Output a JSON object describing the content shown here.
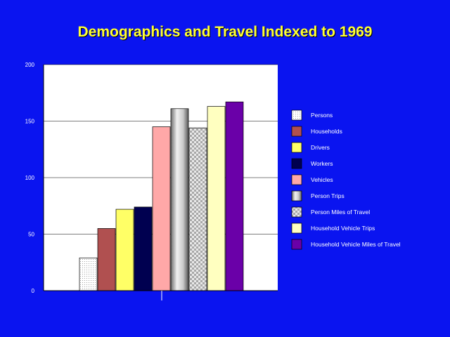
{
  "slide": {
    "title": "Demographics and Travel Indexed to 1969"
  },
  "chart_data": {
    "type": "bar",
    "title": "Demographics and Travel Indexed to 1969",
    "xlabel": "",
    "ylabel": "",
    "ylim": [
      0,
      200
    ],
    "yticks": [
      0,
      50,
      100,
      150,
      200
    ],
    "ytick_labels": [
      "0",
      "50",
      "100",
      "150",
      "200"
    ],
    "xticks": [
      ""
    ],
    "grid": true,
    "legend_position": "right",
    "series": [
      {
        "name": "Persons",
        "value": 29,
        "color": "#f4f4f4",
        "pattern": "dots"
      },
      {
        "name": "Households",
        "value": 55,
        "color": "#b05050",
        "pattern": "solid"
      },
      {
        "name": "Drivers",
        "value": 72,
        "color": "#ffff66",
        "pattern": "solid"
      },
      {
        "name": "Workers",
        "value": 74,
        "color": "#000050",
        "pattern": "solid"
      },
      {
        "name": "Vehicles",
        "value": 145,
        "color": "#ffa8a8",
        "pattern": "solid"
      },
      {
        "name": "Person Trips",
        "value": 161,
        "color": "#c8c8c8",
        "pattern": "gradient"
      },
      {
        "name": "Person Miles of Travel",
        "value": 144,
        "color": "#d0d0d0",
        "pattern": "checker"
      },
      {
        "name": "Household Vehicle Trips",
        "value": 163,
        "color": "#ffffc0",
        "pattern": "solid"
      },
      {
        "name": "Household Vehicle Miles of Travel",
        "value": 167,
        "color": "#6a00a8",
        "pattern": "solid"
      }
    ]
  }
}
